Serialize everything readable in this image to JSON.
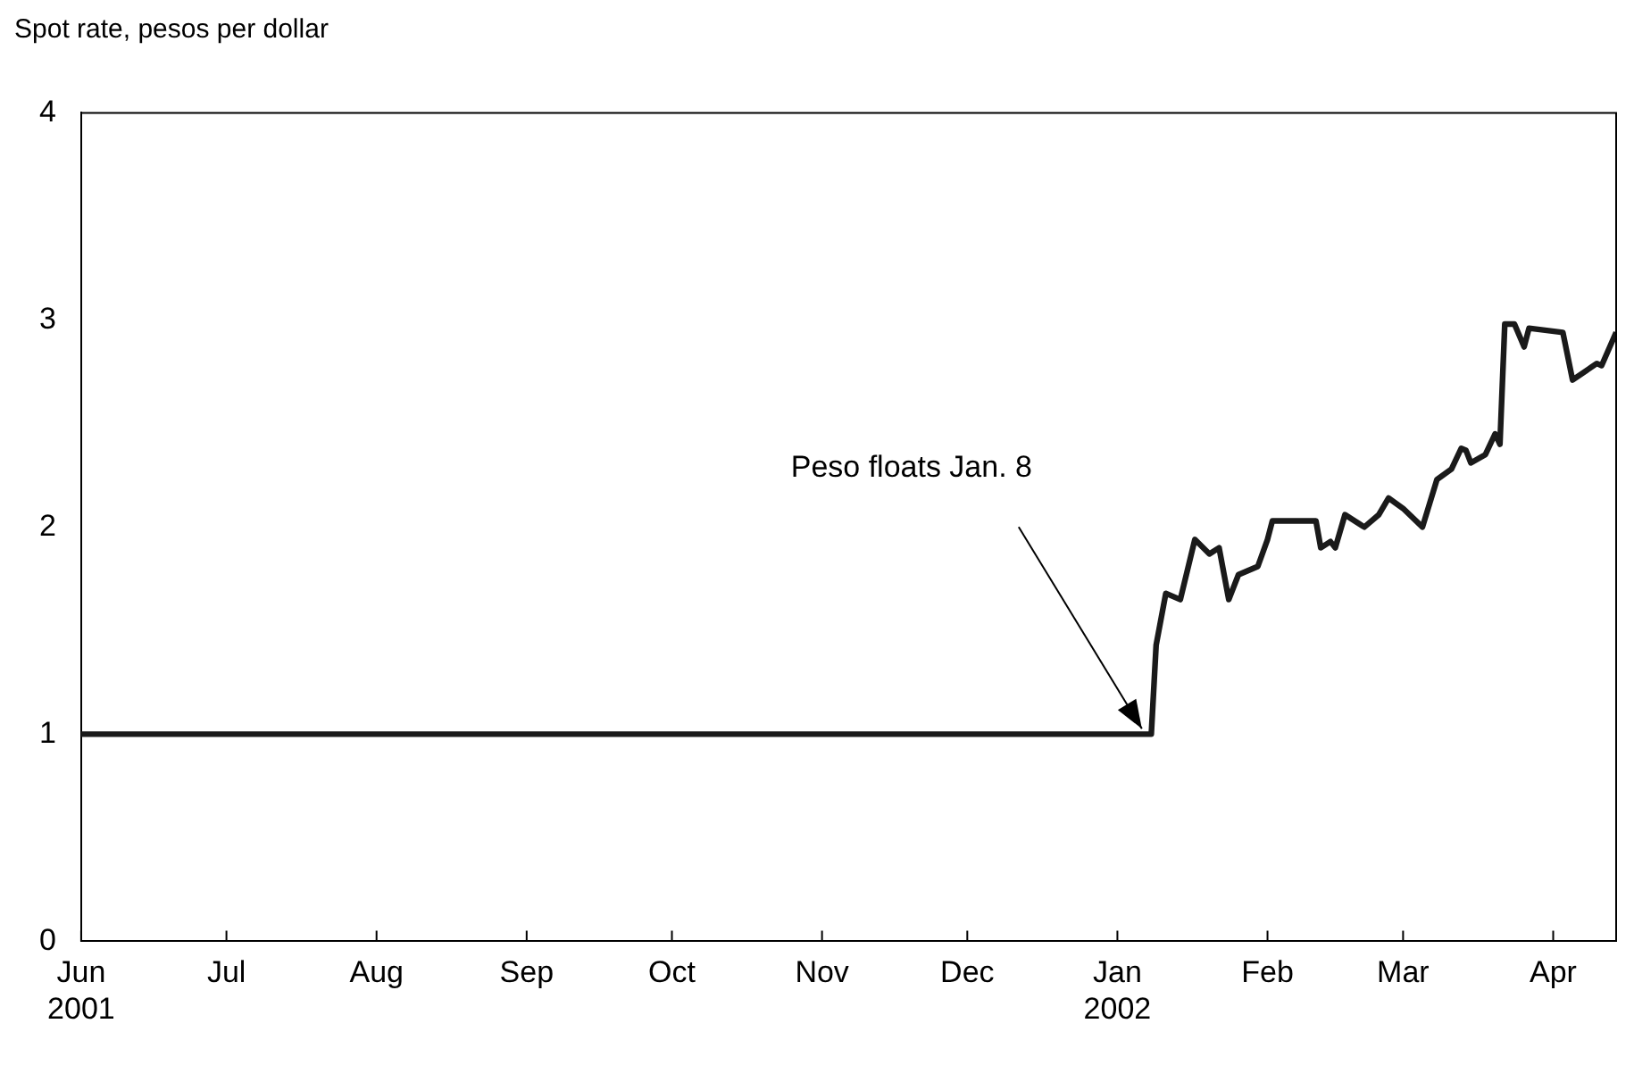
{
  "chart_data": {
    "type": "line",
    "ylabel": "Spot rate, pesos per dollar",
    "x": [
      "2001-06-01",
      "2002-01-08",
      "2002-01-09",
      "2002-01-11",
      "2002-01-14",
      "2002-01-17",
      "2002-01-20",
      "2002-01-22",
      "2002-01-24",
      "2002-01-26",
      "2002-01-30",
      "2002-02-01",
      "2002-02-02",
      "2002-02-11",
      "2002-02-12",
      "2002-02-14",
      "2002-02-15",
      "2002-02-17",
      "2002-02-19",
      "2002-02-21",
      "2002-02-24",
      "2002-02-26",
      "2002-03-01",
      "2002-03-05",
      "2002-03-08",
      "2002-03-11",
      "2002-03-13",
      "2002-03-14",
      "2002-03-15",
      "2002-03-18",
      "2002-03-20",
      "2002-03-21",
      "2002-03-22",
      "2002-03-24",
      "2002-03-26",
      "2002-03-27",
      "2002-04-03",
      "2002-04-05",
      "2002-04-10",
      "2002-04-11",
      "2002-04-14"
    ],
    "values": [
      1,
      1,
      1.43,
      1.68,
      1.65,
      1.94,
      1.87,
      1.9,
      1.65,
      1.77,
      1.81,
      1.94,
      2.03,
      2.03,
      1.9,
      1.93,
      1.9,
      2.06,
      2.03,
      2,
      2.06,
      2.14,
      2.09,
      2,
      2.23,
      2.28,
      2.38,
      2.37,
      2.31,
      2.35,
      2.45,
      2.4,
      2.98,
      2.98,
      2.87,
      2.96,
      2.94,
      2.71,
      2.79,
      2.78,
      2.94
    ],
    "color": "#1a1a1a",
    "marker": "none",
    "line_style": "solid",
    "legend": false,
    "xlim": [
      "2001-06-01",
      "2002-04-14"
    ],
    "xticks": [
      {
        "value": "2001-06-01",
        "label": "Jun\n2001"
      },
      {
        "value": "2001-07-01",
        "label": "Jul"
      },
      {
        "value": "2001-08-01",
        "label": "Aug"
      },
      {
        "value": "2001-09-01",
        "label": "Sep"
      },
      {
        "value": "2001-10-01",
        "label": "Oct"
      },
      {
        "value": "2001-11-01",
        "label": "Nov"
      },
      {
        "value": "2001-12-01",
        "label": "Dec"
      },
      {
        "value": "2002-01-01",
        "label": "Jan\n2002"
      },
      {
        "value": "2002-02-01",
        "label": "Feb"
      },
      {
        "value": "2002-03-01",
        "label": "Mar"
      },
      {
        "value": "2002-04-01",
        "label": "Apr"
      }
    ],
    "ylim": [
      0,
      4
    ],
    "yticks": [
      0,
      1,
      2,
      3,
      4
    ],
    "annotations": [
      "Peso floats Jan. 8"
    ]
  }
}
